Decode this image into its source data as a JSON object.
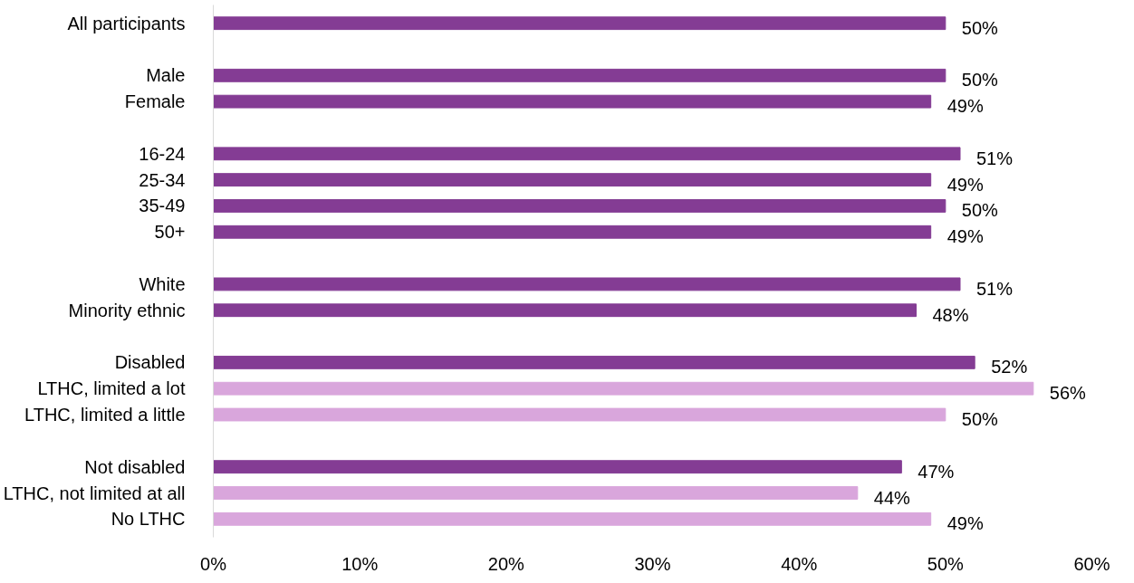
{
  "chart_data": {
    "type": "bar",
    "orientation": "horizontal",
    "categories": [
      "All participants",
      null,
      "Male",
      "Female",
      null,
      "16-24",
      "25-34",
      "35-49",
      "50+",
      null,
      "White",
      "Minority ethnic",
      null,
      "Disabled",
      "LTHC, limited a lot",
      "LTHC, limited a little",
      null,
      "Not disabled",
      "LTHC, not limited at all",
      "No LTHC"
    ],
    "values": [
      50,
      null,
      50,
      49,
      null,
      51,
      49,
      50,
      49,
      null,
      51,
      48,
      null,
      52,
      56,
      50,
      null,
      47,
      44,
      49
    ],
    "colors": [
      "#843c94",
      null,
      "#843c94",
      "#843c94",
      null,
      "#843c94",
      "#843c94",
      "#843c94",
      "#843c94",
      null,
      "#843c94",
      "#843c94",
      null,
      "#843c94",
      "#d9a6dc",
      "#d9a6dc",
      null,
      "#843c94",
      "#d9a6dc",
      "#d9a6dc"
    ],
    "value_labels": [
      "50%",
      null,
      "50%",
      "49%",
      null,
      "51%",
      "49%",
      "50%",
      "49%",
      null,
      "51%",
      "48%",
      null,
      "52%",
      "56%",
      "50%",
      null,
      "47%",
      "44%",
      "49%"
    ],
    "xlim": [
      0,
      60
    ],
    "xticks": [
      {
        "value": 0,
        "label": "0%"
      },
      {
        "value": 10,
        "label": "10%"
      },
      {
        "value": 20,
        "label": "20%"
      },
      {
        "value": 30,
        "label": "30%"
      },
      {
        "value": 40,
        "label": "40%"
      },
      {
        "value": 50,
        "label": "50%"
      },
      {
        "value": 60,
        "label": "60%"
      }
    ],
    "grid": false
  }
}
